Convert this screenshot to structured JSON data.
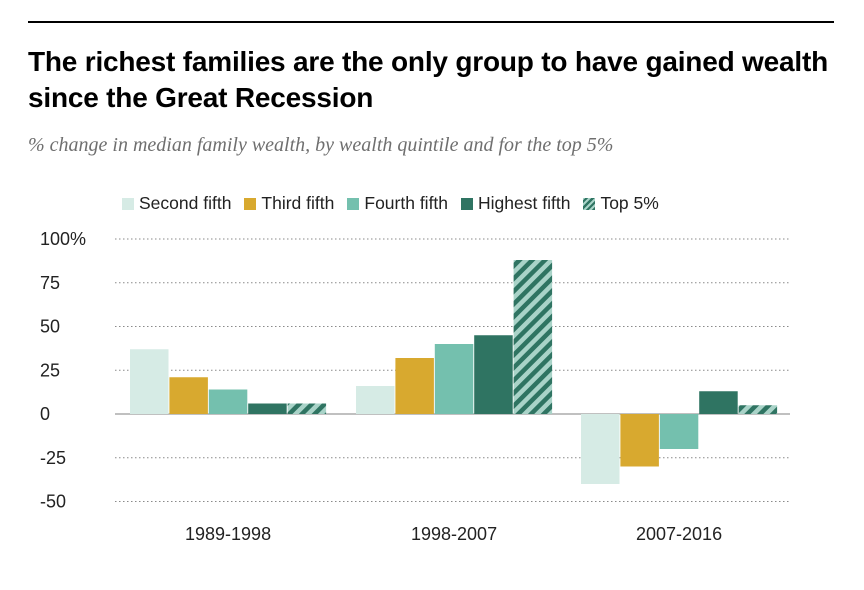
{
  "header": {
    "title": "The richest families are the only group to have gained wealth since the Great Recession",
    "subtitle": "% change in median family wealth, by wealth quintile and for the top 5%"
  },
  "chart_data": {
    "type": "bar",
    "title": "The richest families are the only group to have gained wealth since the Great Recession",
    "subtitle": "% change in median family wealth, by wealth quintile and for the top 5%",
    "categories": [
      "1989-1998",
      "1998-2007",
      "2007-2016"
    ],
    "series": [
      {
        "name": "Second fifth",
        "color": "#d6ebe5",
        "values": [
          37,
          16,
          -40
        ]
      },
      {
        "name": "Third fifth",
        "color": "#d8a92f",
        "values": [
          21,
          32,
          -30
        ]
      },
      {
        "name": "Fourth fifth",
        "color": "#74c0ae",
        "values": [
          14,
          40,
          -20
        ]
      },
      {
        "name": "Highest fifth",
        "color": "#2f7462",
        "values": [
          6,
          45,
          13
        ]
      },
      {
        "name": "Top 5%",
        "color": "#2f7462",
        "pattern": "hatched",
        "values": [
          6,
          88,
          5
        ]
      }
    ],
    "yticks": [
      100,
      75,
      50,
      25,
      0,
      -25,
      -50
    ],
    "ytick_labels": [
      "100%",
      "75",
      "50",
      "25",
      "0",
      "-25",
      "-50"
    ],
    "ylim": [
      -50,
      100
    ],
    "grid": "dotted-horizontal",
    "legend": "top"
  }
}
